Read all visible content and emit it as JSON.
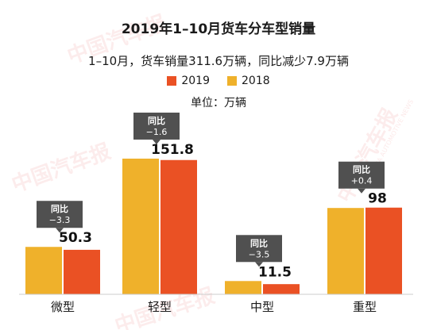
{
  "watermark": {
    "brand": "中国汽车报",
    "sub": "CHINA AUTOMOTIVE NEWS"
  },
  "colors": {
    "y2019": "#ea5124",
    "y2018": "#efb12b",
    "callout": "#505050"
  },
  "chart_data": {
    "type": "bar",
    "title": "2019年1–10月货车分车型销量",
    "subtitle": "1–10月，货车销量311.6万辆，同比减少7.9万辆",
    "unit_label": "单位：万辆",
    "categories": [
      "微型",
      "轻型",
      "中型",
      "重型"
    ],
    "series": [
      {
        "name": "2019",
        "values": [
          50.3,
          151.8,
          11.5,
          98
        ]
      },
      {
        "name": "2018",
        "values": [
          53.6,
          153.4,
          15.0,
          97.6
        ]
      }
    ],
    "value_labels": [
      "50.3",
      "151.8",
      "11.5",
      "98"
    ],
    "yoy_label": "同比",
    "yoy_changes": [
      "−3.3",
      "−1.6",
      "−3.5",
      "+0.4"
    ],
    "legend_position": "top-center",
    "grid": false
  }
}
